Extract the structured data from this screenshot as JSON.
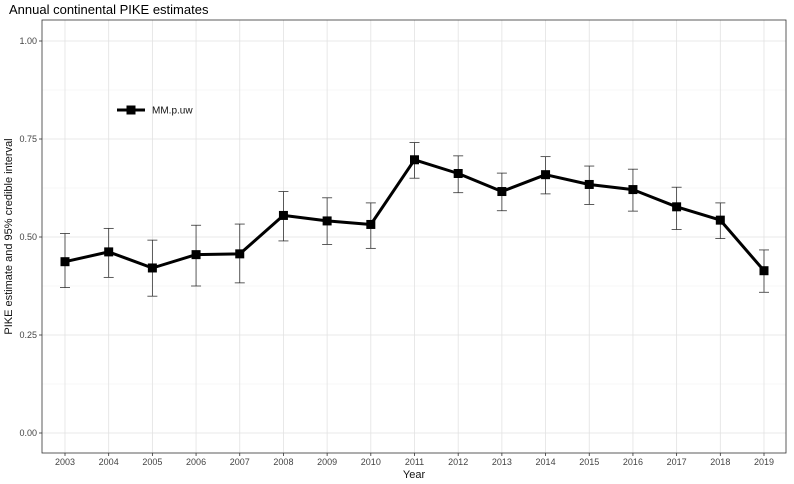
{
  "chart_data": {
    "type": "line",
    "title": "Annual continental PIKE estimates",
    "xlabel": "Year",
    "ylabel": "PIKE estimate and 95% credible interval",
    "categories": [
      "2003",
      "2004",
      "2005",
      "2006",
      "2007",
      "2008",
      "2009",
      "2010",
      "2011",
      "2012",
      "2013",
      "2014",
      "2015",
      "2016",
      "2017",
      "2018",
      "2019"
    ],
    "y_ticks": [
      "0.00",
      "0.25",
      "0.50",
      "0.75",
      "1.00"
    ],
    "ylim": [
      0,
      1
    ],
    "grid": true,
    "legend_position": "top-left",
    "series": [
      {
        "name": "MM.p.uw",
        "color": "#000000",
        "marker": "square",
        "values": [
          0.437,
          0.462,
          0.421,
          0.455,
          0.457,
          0.555,
          0.541,
          0.532,
          0.697,
          0.662,
          0.616,
          0.659,
          0.634,
          0.621,
          0.577,
          0.543,
          0.414
        ],
        "lower": [
          0.371,
          0.397,
          0.349,
          0.375,
          0.383,
          0.49,
          0.481,
          0.471,
          0.65,
          0.613,
          0.567,
          0.61,
          0.583,
          0.566,
          0.519,
          0.496,
          0.359
        ],
        "upper": [
          0.509,
          0.522,
          0.492,
          0.53,
          0.533,
          0.616,
          0.6,
          0.587,
          0.741,
          0.707,
          0.663,
          0.705,
          0.681,
          0.673,
          0.627,
          0.587,
          0.467
        ]
      }
    ]
  }
}
